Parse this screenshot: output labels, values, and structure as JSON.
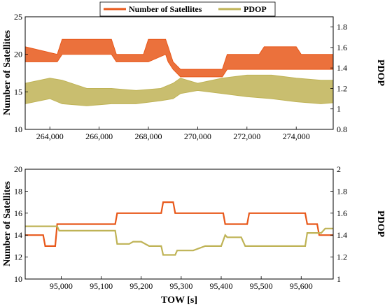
{
  "legend": {
    "items": [
      {
        "label": "Number of Satellites",
        "color": "#e8581a"
      },
      {
        "label": "PDOP",
        "color": "#bfb356"
      }
    ],
    "placement": "top-center"
  },
  "chart_data": [
    {
      "type": "line",
      "title": "",
      "xlabel": "",
      "ylabel": "Number of Satellites",
      "y2label": "PDOP",
      "xlim": [
        263000,
        275500
      ],
      "ylim": [
        10,
        25
      ],
      "y2lim": [
        0.8,
        1.9
      ],
      "xticks": [
        264000,
        266000,
        268000,
        270000,
        272000,
        274000
      ],
      "xticklabels": [
        "264,000",
        "266,000",
        "268,000",
        "270,000",
        "272,000",
        "274,000"
      ],
      "yticks": [
        10,
        15,
        20,
        25
      ],
      "y2ticks": [
        0.8,
        1.0,
        1.2,
        1.4,
        1.6,
        1.8
      ],
      "y2ticklabels": [
        "0.8",
        "1",
        "1.2",
        "1.4",
        "1.6",
        "1.8"
      ],
      "grid": false,
      "series": [
        {
          "name": "Number of Satellites",
          "axis": "left",
          "color": "#e8581a",
          "x": [
            263000,
            264300,
            264500,
            266500,
            266700,
            267800,
            268000,
            268700,
            268800,
            269000,
            269300,
            271000,
            271200,
            272500,
            272700,
            274000,
            274200,
            275500
          ],
          "y_min": [
            19,
            19,
            20,
            20,
            19,
            19,
            19,
            20,
            19,
            18,
            17,
            17,
            18,
            18,
            18,
            18,
            18,
            18
          ],
          "y_max": [
            21,
            20,
            22,
            22,
            20,
            20,
            22,
            22,
            21,
            19,
            18,
            18,
            20,
            20,
            21,
            21,
            20,
            20
          ]
        },
        {
          "name": "PDOP",
          "axis": "right",
          "color": "#bfb356",
          "x": [
            263000,
            264000,
            264500,
            265500,
            266500,
            267500,
            268500,
            269000,
            269300,
            270000,
            271000,
            272000,
            273000,
            274000,
            275000,
            275500
          ],
          "y_min": [
            1.05,
            1.1,
            1.05,
            1.03,
            1.05,
            1.05,
            1.08,
            1.1,
            1.15,
            1.18,
            1.15,
            1.12,
            1.1,
            1.07,
            1.05,
            1.06
          ],
          "y_max": [
            1.25,
            1.3,
            1.28,
            1.2,
            1.2,
            1.18,
            1.2,
            1.25,
            1.3,
            1.25,
            1.3,
            1.33,
            1.33,
            1.3,
            1.28,
            1.28
          ]
        }
      ]
    },
    {
      "type": "line",
      "title": "",
      "xlabel": "TOW [s]",
      "ylabel": "Number of Satellites",
      "y2label": "PDOP",
      "xlim": [
        94910,
        95680
      ],
      "ylim": [
        10,
        20
      ],
      "y2lim": [
        1.0,
        2.0
      ],
      "xticks": [
        95000,
        95100,
        95200,
        95300,
        95400,
        95500,
        95600
      ],
      "xticklabels": [
        "95,000",
        "95,100",
        "95,200",
        "95,300",
        "95,400",
        "95,500",
        "95,600"
      ],
      "yticks": [
        10,
        12,
        14,
        16,
        18,
        20
      ],
      "y2ticks": [
        1.0,
        1.2,
        1.4,
        1.6,
        1.8,
        2.0
      ],
      "y2ticklabels": [
        "1",
        "1.2",
        "1.4",
        "1.6",
        "1.8",
        "2"
      ],
      "grid": false,
      "series": [
        {
          "name": "Number of Satellites",
          "axis": "left",
          "color": "#e8581a",
          "x": [
            94910,
            94955,
            94960,
            94985,
            94990,
            95135,
            95140,
            95250,
            95255,
            95280,
            95285,
            95405,
            95410,
            95465,
            95470,
            95610,
            95615,
            95640,
            95645,
            95680
          ],
          "y": [
            14,
            14,
            13,
            13,
            15,
            15,
            16,
            16,
            17,
            17,
            16,
            16,
            15,
            15,
            16,
            16,
            15,
            15,
            14,
            14
          ]
        },
        {
          "name": "PDOP",
          "axis": "right",
          "color": "#bfb356",
          "x": [
            94910,
            94990,
            94995,
            95135,
            95140,
            95170,
            95180,
            95200,
            95220,
            95250,
            95255,
            95285,
            95290,
            95330,
            95360,
            95400,
            95410,
            95415,
            95450,
            95460,
            95560,
            95610,
            95615,
            95650,
            95660,
            95680
          ],
          "y": [
            1.48,
            1.48,
            1.44,
            1.44,
            1.32,
            1.32,
            1.34,
            1.34,
            1.3,
            1.3,
            1.22,
            1.22,
            1.26,
            1.26,
            1.3,
            1.3,
            1.4,
            1.38,
            1.38,
            1.3,
            1.3,
            1.3,
            1.42,
            1.42,
            1.46,
            1.46
          ]
        }
      ]
    }
  ]
}
